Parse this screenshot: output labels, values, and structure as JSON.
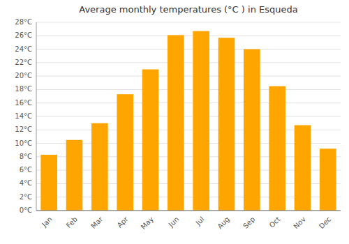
{
  "chart_data": {
    "type": "bar",
    "title": "Average monthly temperatures (°C ) in Esqueda",
    "categories": [
      "Jan",
      "Feb",
      "Mar",
      "Apr",
      "May",
      "Jun",
      "Jul",
      "Aug",
      "Sep",
      "Oct",
      "Nov",
      "Dec"
    ],
    "values": [
      8.3,
      10.5,
      13.0,
      17.3,
      21.0,
      26.1,
      26.7,
      25.7,
      24.0,
      18.5,
      12.7,
      9.2
    ],
    "color": "#FFA500",
    "ylim": [
      0,
      28
    ],
    "yticks": [
      {
        "value": 0,
        "label": "0°C"
      },
      {
        "value": 2,
        "label": "2°C"
      },
      {
        "value": 4,
        "label": "4°C"
      },
      {
        "value": 6,
        "label": "6°C"
      },
      {
        "value": 8,
        "label": "8°C"
      },
      {
        "value": 10,
        "label": "10°C"
      },
      {
        "value": 12,
        "label": "12°C"
      },
      {
        "value": 14,
        "label": "14°C"
      },
      {
        "value": 16,
        "label": "16°C"
      },
      {
        "value": 18,
        "label": "18°C"
      },
      {
        "value": 20,
        "label": "20°C"
      },
      {
        "value": 22,
        "label": "22°C"
      },
      {
        "value": 24,
        "label": "24°C"
      },
      {
        "value": 26,
        "label": "26°C"
      },
      {
        "value": 28,
        "label": "28°C"
      }
    ],
    "grid": true
  }
}
